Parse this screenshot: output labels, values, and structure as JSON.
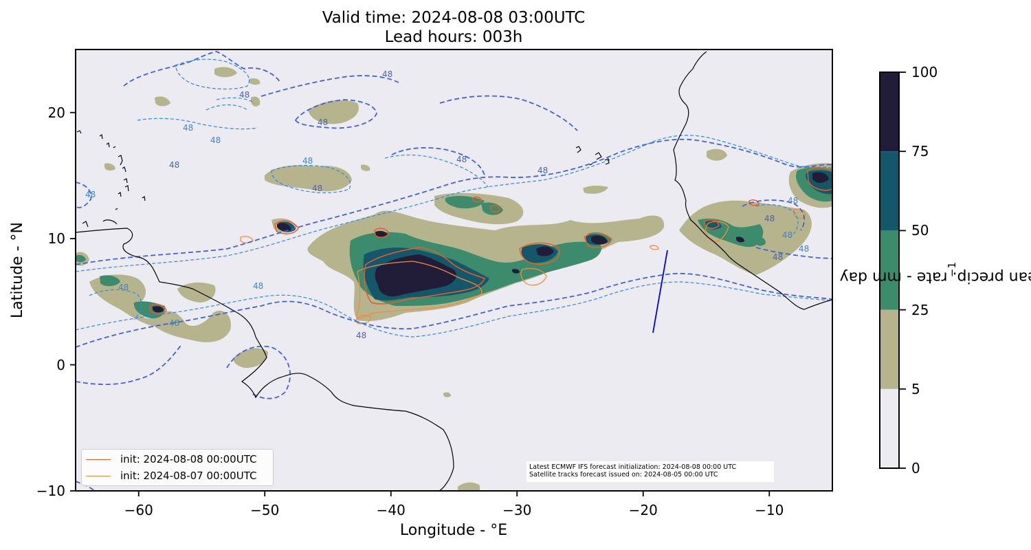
{
  "title": {
    "line1": "Valid time: 2024-08-08 03:00UTC",
    "line2": "Lead hours: 003h"
  },
  "axes": {
    "xlabel": "Longitude - °E",
    "ylabel": "Latitude - °N",
    "xticks": [
      "−60",
      "−50",
      "−40",
      "−30",
      "−20",
      "−10"
    ],
    "yticks": [
      "20",
      "10",
      "0",
      "−10"
    ],
    "xlim": [
      -65,
      -5
    ],
    "ylim": [
      -10,
      25
    ]
  },
  "legend": {
    "entries": [
      {
        "label": "init: 2024-08-08 00:00UTC",
        "color": "#f05a28"
      },
      {
        "label": "init: 2024-08-07 00:00UTC",
        "color": "#f7893b"
      }
    ]
  },
  "info": {
    "line1": "Latest ECMWF IFS forecast initialization: 2024-08-08 00:00 UTC",
    "line2": "Satellite tracks forecast issued on: 2024-08-05 00:00 UTC"
  },
  "colorbar": {
    "label": "mean precip. rate - mm day",
    "label_exponent": "−1",
    "ticks": [
      "100",
      "75",
      "50",
      "25",
      "5",
      "0"
    ],
    "bins": [
      {
        "range": "75-100",
        "color": "#211d38"
      },
      {
        "range": "50-75",
        "color": "#14566a"
      },
      {
        "range": "25-50",
        "color": "#3b8b6c"
      },
      {
        "range": "5-25",
        "color": "#b6b48c"
      },
      {
        "range": "0-5",
        "color": "#ecebf1"
      }
    ]
  },
  "contours": {
    "label": "48",
    "colors": {
      "thick": "#4062d8",
      "thin": "#2a8af0"
    }
  },
  "colors": {
    "ocean": "#ecebf1",
    "coast": "#000000",
    "satellite_track": "#0000dd"
  }
}
